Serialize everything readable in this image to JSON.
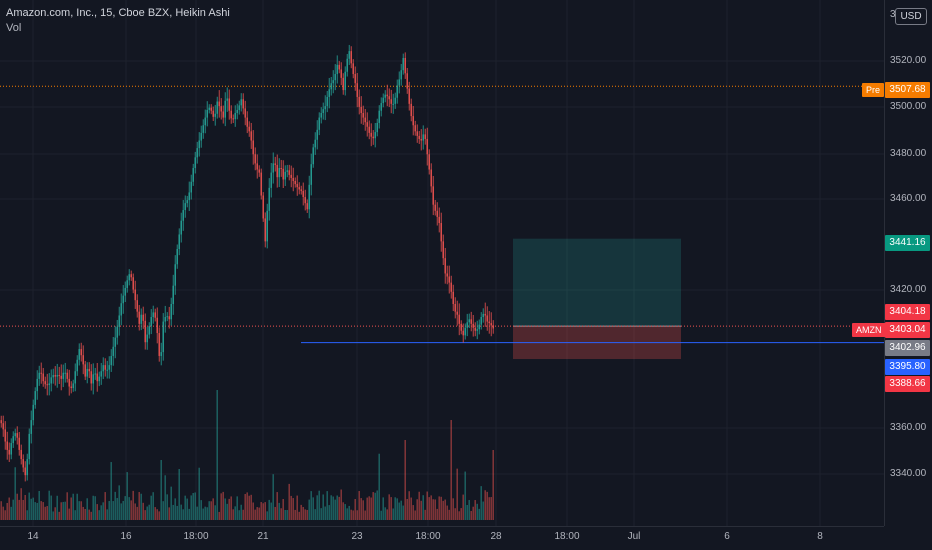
{
  "chart_info": {
    "title": "Amazon.com, Inc., 15, Cboe BZX, Heikin Ashi",
    "indicator": "Vol",
    "currency": "USD"
  },
  "price_scale": {
    "ticks": [
      "3520.00",
      "3500.00",
      "3480.00",
      "3460.00",
      "3420.00",
      "3360.00",
      "3340.00"
    ]
  },
  "time_scale": {
    "ticks": [
      "14",
      "16",
      "18:00",
      "21",
      "23",
      "18:00",
      "28",
      "18:00",
      "Jul",
      "6",
      "8"
    ]
  },
  "price_labels": {
    "pre_tag": "Pre",
    "pre_value": "3507.68",
    "target_value": "3441.16",
    "upper_value": "3404.18",
    "ticker_tag": "AMZN",
    "last_value": "3403.04",
    "crosshair_value": "3402.96",
    "blue_line_value": "3395.80",
    "stop_value": "3388.66"
  },
  "colors": {
    "background": "#131722",
    "up": "#26a69a",
    "down": "#ef5350",
    "pre_line": "#f57c00",
    "blue_line": "#2962ff",
    "grid": "#1e222d"
  },
  "chart_data": {
    "type": "candlestick",
    "title": "Amazon.com, Inc., 15, Cboe BZX, Heikin Ashi",
    "y_range": [
      3327,
      3533
    ],
    "close_path": [
      [
        0,
        3362
      ],
      [
        3,
        3358
      ],
      [
        6,
        3350
      ],
      [
        9,
        3347
      ],
      [
        11,
        3352
      ],
      [
        13,
        3355
      ],
      [
        16,
        3357
      ],
      [
        19,
        3349
      ],
      [
        22,
        3343
      ],
      [
        25,
        3338
      ],
      [
        27,
        3345
      ],
      [
        29,
        3356
      ],
      [
        31,
        3362
      ],
      [
        34,
        3372
      ],
      [
        37,
        3380
      ],
      [
        40,
        3384
      ],
      [
        43,
        3379
      ],
      [
        46,
        3377
      ],
      [
        49,
        3378
      ],
      [
        52,
        3382
      ],
      [
        55,
        3381
      ],
      [
        58,
        3382
      ],
      [
        61,
        3380
      ],
      [
        64,
        3384
      ],
      [
        67,
        3380
      ],
      [
        70,
        3375
      ],
      [
        73,
        3378
      ],
      [
        76,
        3386
      ],
      [
        79,
        3393
      ],
      [
        82,
        3389
      ],
      [
        85,
        3381
      ],
      [
        88,
        3386
      ],
      [
        91,
        3378
      ],
      [
        94,
        3384
      ],
      [
        97,
        3379
      ],
      [
        100,
        3382
      ],
      [
        103,
        3386
      ],
      [
        106,
        3383
      ],
      [
        109,
        3386
      ],
      [
        112,
        3392
      ],
      [
        115,
        3398
      ],
      [
        118,
        3405
      ],
      [
        121,
        3413
      ],
      [
        124,
        3418
      ],
      [
        127,
        3423
      ],
      [
        130,
        3427
      ],
      [
        133,
        3419
      ],
      [
        136,
        3412
      ],
      [
        139,
        3404
      ],
      [
        142,
        3410
      ],
      [
        145,
        3396
      ],
      [
        148,
        3401
      ],
      [
        151,
        3407
      ],
      [
        154,
        3410
      ],
      [
        157,
        3400
      ],
      [
        160,
        3385
      ],
      [
        163,
        3405
      ],
      [
        166,
        3408
      ],
      [
        169,
        3406
      ],
      [
        172,
        3416
      ],
      [
        175,
        3430
      ],
      [
        178,
        3440
      ],
      [
        181,
        3449
      ],
      [
        184,
        3456
      ],
      [
        187,
        3458
      ],
      [
        190,
        3463
      ],
      [
        193,
        3472
      ],
      [
        196,
        3479
      ],
      [
        199,
        3484
      ],
      [
        202,
        3489
      ],
      [
        205,
        3494
      ],
      [
        208,
        3499
      ],
      [
        211,
        3497
      ],
      [
        214,
        3493
      ],
      [
        217,
        3501
      ],
      [
        220,
        3498
      ],
      [
        223,
        3494
      ],
      [
        226,
        3505
      ],
      [
        229,
        3497
      ],
      [
        232,
        3492
      ],
      [
        235,
        3496
      ],
      [
        238,
        3498
      ],
      [
        241,
        3502
      ],
      [
        244,
        3496
      ],
      [
        247,
        3490
      ],
      [
        250,
        3487
      ],
      [
        253,
        3478
      ],
      [
        256,
        3472
      ],
      [
        259,
        3470
      ],
      [
        262,
        3455
      ],
      [
        265,
        3440
      ],
      [
        268,
        3460
      ],
      [
        271,
        3470
      ],
      [
        274,
        3476
      ],
      [
        277,
        3468
      ],
      [
        280,
        3474
      ],
      [
        283,
        3467
      ],
      [
        286,
        3472
      ],
      [
        289,
        3469
      ],
      [
        292,
        3467
      ],
      [
        295,
        3465
      ],
      [
        298,
        3463
      ],
      [
        301,
        3462
      ],
      [
        304,
        3458
      ],
      [
        307,
        3454
      ],
      [
        310,
        3470
      ],
      [
        313,
        3481
      ],
      [
        316,
        3486
      ],
      [
        319,
        3494
      ],
      [
        322,
        3497
      ],
      [
        325,
        3499
      ],
      [
        328,
        3505
      ],
      [
        331,
        3509
      ],
      [
        334,
        3511
      ],
      [
        337,
        3517
      ],
      [
        340,
        3514
      ],
      [
        343,
        3506
      ],
      [
        346,
        3518
      ],
      [
        349,
        3523
      ],
      [
        352,
        3515
      ],
      [
        355,
        3509
      ],
      [
        358,
        3500
      ],
      [
        361,
        3496
      ],
      [
        364,
        3493
      ],
      [
        367,
        3490
      ],
      [
        370,
        3486
      ],
      [
        373,
        3485
      ],
      [
        376,
        3489
      ],
      [
        379,
        3497
      ],
      [
        382,
        3502
      ],
      [
        385,
        3504
      ],
      [
        388,
        3503
      ],
      [
        391,
        3500
      ],
      [
        394,
        3500
      ],
      [
        397,
        3508
      ],
      [
        400,
        3512
      ],
      [
        403,
        3520
      ],
      [
        406,
        3510
      ],
      [
        409,
        3500
      ],
      [
        412,
        3492
      ],
      [
        415,
        3488
      ],
      [
        418,
        3485
      ],
      [
        421,
        3484
      ],
      [
        424,
        3488
      ],
      [
        427,
        3478
      ],
      [
        430,
        3468
      ],
      [
        433,
        3456
      ],
      [
        436,
        3452
      ],
      [
        439,
        3448
      ],
      [
        442,
        3436
      ],
      [
        445,
        3426
      ],
      [
        448,
        3424
      ],
      [
        451,
        3418
      ],
      [
        454,
        3410
      ],
      [
        457,
        3408
      ],
      [
        460,
        3402
      ],
      [
        463,
        3399
      ],
      [
        466,
        3404
      ],
      [
        469,
        3406
      ],
      [
        472,
        3403
      ],
      [
        475,
        3401
      ],
      [
        478,
        3402
      ],
      [
        481,
        3407
      ],
      [
        484,
        3409
      ],
      [
        487,
        3405
      ],
      [
        490,
        3404
      ],
      [
        493,
        3402
      ]
    ],
    "rr_box": {
      "x_start": "Jun 28",
      "x_end": "Jul 4",
      "entry": 3403.04,
      "target": 3441.16,
      "stop": 3388.66
    },
    "horizontal_lines": [
      {
        "name": "pre-market",
        "value": 3507.68
      },
      {
        "name": "last",
        "value": 3403.04
      },
      {
        "name": "blue",
        "value": 3395.8
      }
    ]
  }
}
